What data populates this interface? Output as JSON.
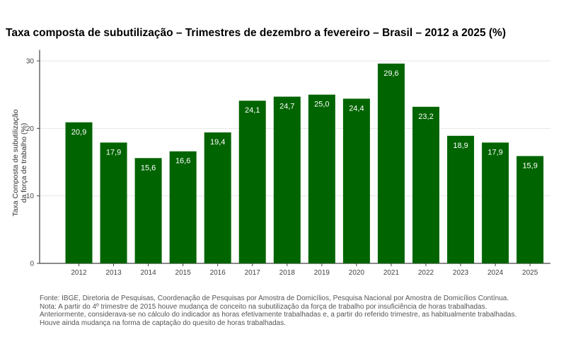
{
  "chart_data": {
    "type": "bar",
    "title": "Taxa composta de subutilização – Trimestres de dezembro a fevereiro – Brasil – 2012 a 2025 (%)",
    "xlabel": "",
    "ylabel": "Taxa Composta de subutilização da força de trabalho (%)",
    "ylim": [
      0,
      31
    ],
    "yticks": [
      "0",
      "10",
      "20",
      "30"
    ],
    "grid": "horizontal",
    "bar_color": "#006400",
    "categories": [
      "2012",
      "2013",
      "2014",
      "2015",
      "2016",
      "2017",
      "2018",
      "2019",
      "2020",
      "2021",
      "2022",
      "2023",
      "2024",
      "2025"
    ],
    "values": [
      20.9,
      17.9,
      15.6,
      16.6,
      19.4,
      24.1,
      24.7,
      25.0,
      24.4,
      29.6,
      23.2,
      18.9,
      17.9,
      15.9
    ],
    "value_labels": [
      "20,9",
      "17,9",
      "15,6",
      "16,6",
      "19,4",
      "24,1",
      "24,7",
      "25,0",
      "24,4",
      "29,6",
      "23,2",
      "18,9",
      "17,9",
      "15,9"
    ]
  },
  "notes": [
    "Fonte: IBGE, Diretoria de Pesquisas, Coordenação de Pesquisas por Amostra de Domicílios, Pesquisa Nacional por Amostra de Domicílios Contínua.",
    "Nota: A partir do 4º trimestre de 2015 houve mudança de conceito na subutilização da força de trabalho por insuficiência de horas trabalhadas.",
    "Anteriormente, considerava-se no cálculo do indicador as horas efetivamente trabalhadas e, a partir do referido trimestre, as habitualmente trabalhadas.",
    "Houve ainda mudança na forma de captação do quesito de horas trabalhadas."
  ]
}
